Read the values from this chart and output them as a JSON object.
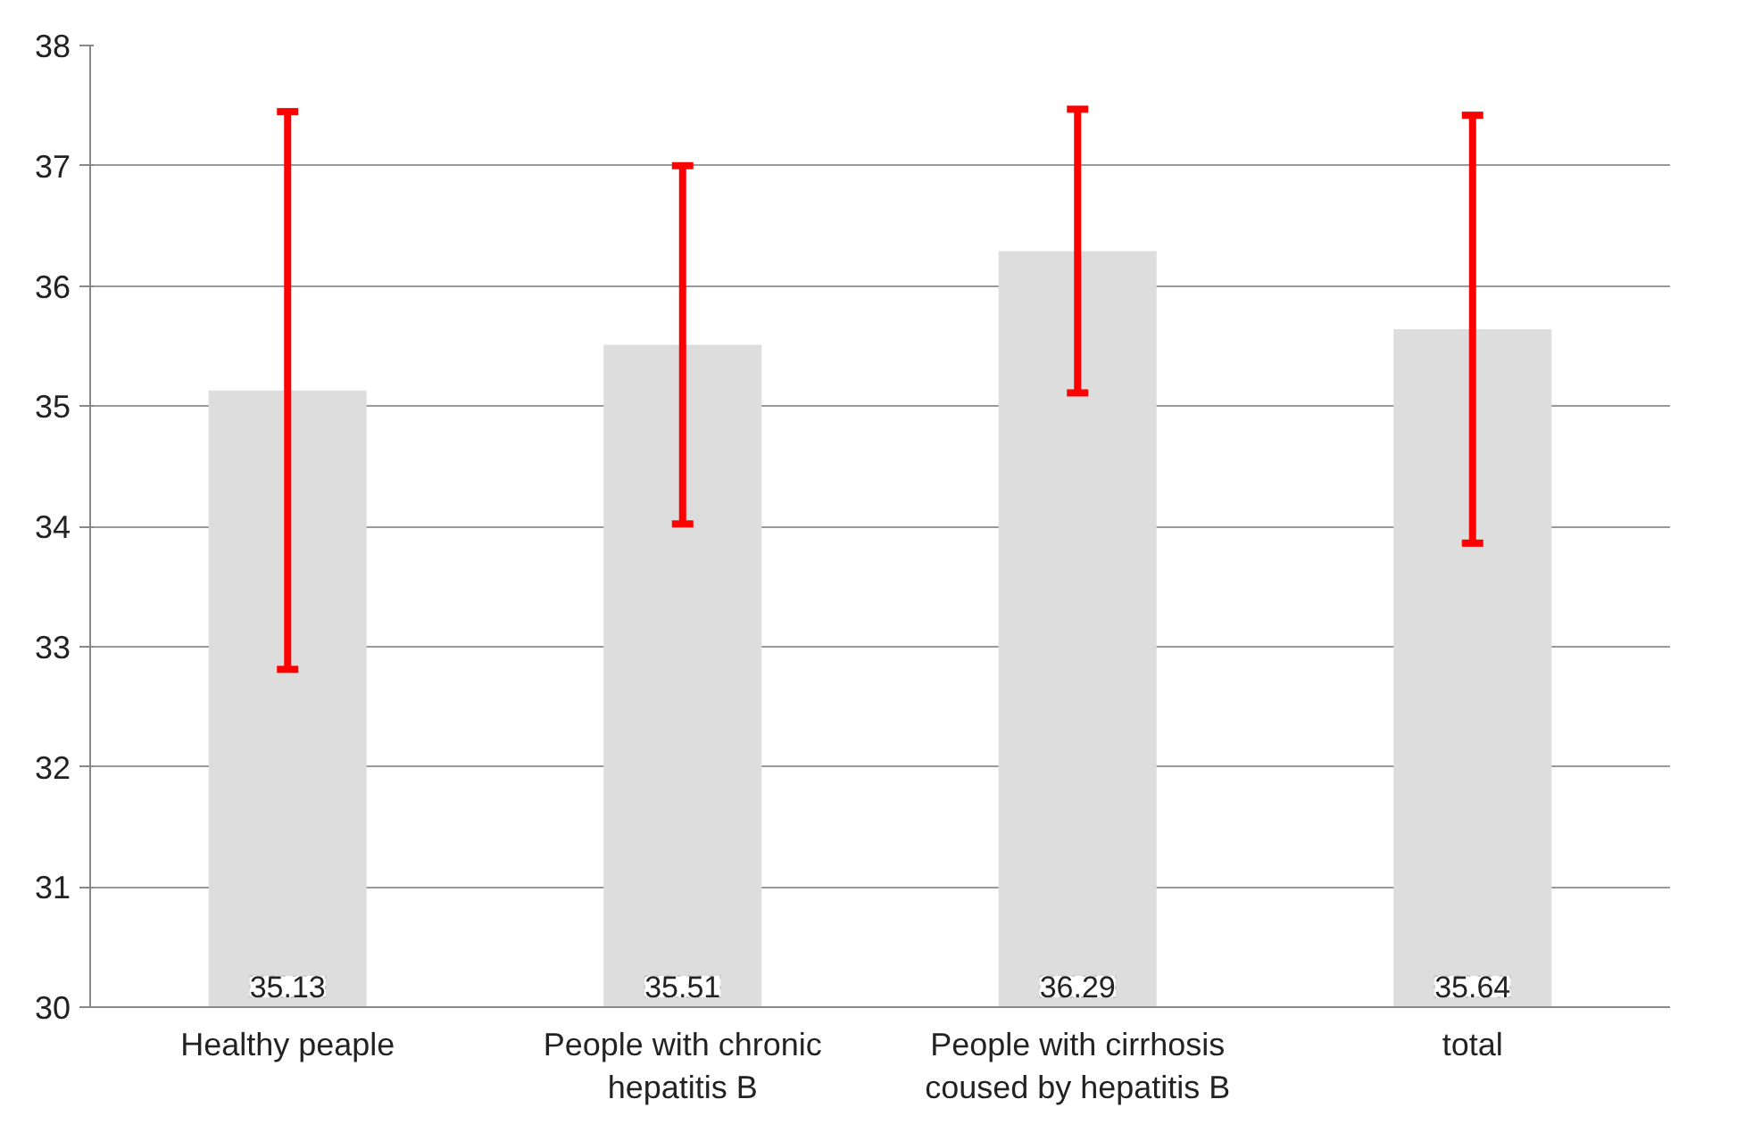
{
  "chart_data": {
    "type": "bar",
    "categories": [
      "Healthy peaple",
      "People with chronic hepatitis B",
      "People with cirrhosis coused by hepatitis B",
      "total"
    ],
    "values": [
      35.13,
      35.51,
      36.29,
      35.64
    ],
    "errors": [
      2.32,
      1.49,
      1.18,
      1.78
    ],
    "color": "#dddddd",
    "ylim": [
      30,
      38
    ],
    "yticks": [
      30,
      31,
      32,
      33,
      34,
      35,
      36,
      37,
      38
    ],
    "grid": "y",
    "data_labels": true
  }
}
